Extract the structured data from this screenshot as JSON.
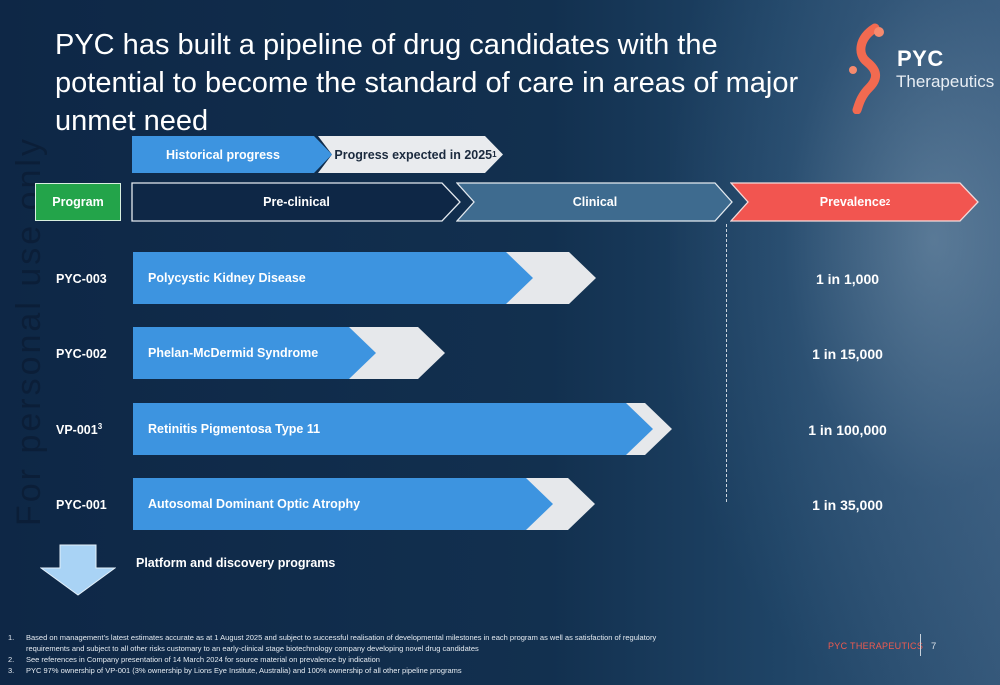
{
  "title": "PYC has built a pipeline of drug candidates with the potential to become the standard of care in areas of major unmet need",
  "logo": {
    "name": "PYC",
    "sub": "Therapeutics",
    "accent": "#f26a50"
  },
  "watermark": "For personal use only",
  "legend": {
    "historical": "Historical progress",
    "expected": "Progress expected in 2025",
    "expected_sup": "1"
  },
  "headers": {
    "program": "Program",
    "preclinical": "Pre-clinical",
    "clinical": "Clinical",
    "prevalence": "Prevalence",
    "prevalence_sup": "2"
  },
  "colors": {
    "historical": "#3d94e0",
    "expected": "#e9ebee",
    "program": "#23a44a",
    "clinical": "#3e6b8f",
    "prevalence": "#f25550"
  },
  "programs": [
    {
      "code": "PYC-003",
      "sup": "",
      "indication": "Polycystic Kidney Disease",
      "prevalence": "1 in 1,000"
    },
    {
      "code": "PYC-002",
      "sup": "",
      "indication": "Phelan-McDermid Syndrome",
      "prevalence": "1 in 15,000"
    },
    {
      "code": "VP-001",
      "sup": "3",
      "indication": "Retinitis Pigmentosa Type 11",
      "prevalence": "1 in 100,000"
    },
    {
      "code": "PYC-001",
      "sup": "",
      "indication": "Autosomal Dominant Optic Atrophy",
      "prevalence": "1 in 35,000"
    }
  ],
  "platform": "Platform and discovery programs",
  "footnotes": [
    {
      "n": "1.",
      "text": "Based on management’s latest estimates accurate as at 1 August 2025 and subject to successful realisation of developmental milestones in each program as well as satisfaction of regulatory requirements and subject to all other risks customary to an early-clinical stage biotechnology company developing novel drug candidates"
    },
    {
      "n": "2.",
      "text": "See references in Company presentation of 14 March 2024 for source material on prevalence by indication"
    },
    {
      "n": "3.",
      "text": "PYC 97% ownership of VP-001 (3% ownership by Lions Eye Institute, Australia) and 100% ownership of all other pipeline programs"
    }
  ],
  "footer": {
    "brand": "PYC THERAPEUTICS",
    "page": "7"
  }
}
